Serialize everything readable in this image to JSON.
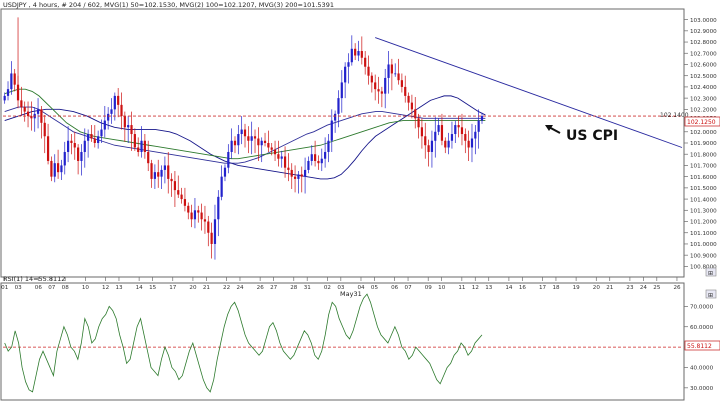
{
  "header": {
    "price_title": "USDJPY , 4 hours, # 204 / 602, MVG(1) 50=102.1530, MVG(2) 100=102.1207, MVG(3) 200=101.5391",
    "rsi_title": "RSI(1) 14=55.8112"
  },
  "annotations": {
    "event_label": "US CPI",
    "month_label": "May31",
    "last_price_tag": "102.1250",
    "ref_price_tag": "102.1400",
    "rsi_value_tag": "55.8112"
  },
  "colors": {
    "background": "#ffffff",
    "axis": "#6a6a6a",
    "grid": "#e4e4e4",
    "candle_up": "#2222cc",
    "candle_down": "#cc1111",
    "ma_50": "#16168a",
    "ma_100": "#2f2f99",
    "ma_200": "#2e7a2e",
    "rsi_line": "#2d7a2d",
    "rsi_level": "#cc2222",
    "price_level": "#cc3333",
    "trendline": "#2a2aa0",
    "event_text": "#111111"
  },
  "chart_data": [
    {
      "type": "candlestick",
      "title": "USDJPY , 4 hours",
      "y_axis_side": "right",
      "ylim": [
        100.75,
        103.05
      ],
      "y_ticks": [
        "103.0000",
        "102.9000",
        "102.8000",
        "102.7000",
        "102.6000",
        "102.5000",
        "102.4000",
        "102.3000",
        "102.2000",
        "102.1250",
        "102.0000",
        "101.9000",
        "101.8000",
        "101.7000",
        "101.6000",
        "101.5000",
        "101.4000",
        "101.3000",
        "101.2000",
        "101.1000",
        "101.0000",
        "100.9000",
        "100.8000"
      ],
      "x_ticks": [
        "01",
        "03",
        "06",
        "07",
        "08",
        "10",
        "12",
        "13",
        "14",
        "15",
        "17",
        "20",
        "21",
        "22",
        "24",
        "26",
        "27",
        "28",
        "31",
        "02",
        "03",
        "04",
        "05",
        "06",
        "07",
        "09",
        "10",
        "11",
        "12",
        "13",
        "14",
        "16",
        "17",
        "18",
        "19",
        "20",
        "21",
        "23",
        "24",
        "25",
        "26"
      ],
      "x_tick_positions": [
        0,
        4,
        10,
        14,
        18,
        24,
        30,
        34,
        40,
        44,
        50,
        56,
        60,
        66,
        70,
        76,
        80,
        86,
        90,
        96,
        100,
        106,
        110,
        116,
        120,
        126,
        130,
        136,
        140,
        144,
        150,
        154,
        160,
        164,
        170,
        176,
        180,
        186,
        190,
        194,
        200
      ],
      "x_total_bars": 202,
      "close": [
        102.32,
        102.38,
        102.52,
        102.42,
        102.28,
        102.22,
        102.18,
        102.14,
        102.12,
        102.16,
        102.2,
        102.08,
        101.96,
        101.74,
        101.6,
        101.72,
        101.64,
        101.7,
        101.82,
        101.92,
        101.9,
        101.86,
        101.74,
        101.82,
        101.92,
        101.98,
        101.94,
        101.9,
        101.96,
        102.02,
        102.1,
        102.16,
        102.2,
        102.32,
        102.24,
        102.14,
        102.04,
        102.06,
        101.98,
        101.86,
        101.82,
        101.92,
        101.82,
        101.72,
        101.58,
        101.64,
        101.6,
        101.66,
        101.7,
        101.58,
        101.56,
        101.48,
        101.44,
        101.4,
        101.34,
        101.28,
        101.22,
        101.3,
        101.28,
        101.22,
        101.2,
        101.1,
        101.0,
        101.22,
        101.42,
        101.6,
        101.68,
        101.82,
        101.92,
        101.88,
        101.98,
        102.02,
        101.96,
        101.92,
        101.96,
        101.94,
        101.88,
        101.92,
        101.9,
        101.86,
        101.84,
        101.8,
        101.76,
        101.78,
        101.68,
        101.66,
        101.6,
        101.58,
        101.62,
        101.6,
        101.66,
        101.74,
        101.8,
        101.74,
        101.72,
        101.76,
        101.82,
        101.92,
        102.1,
        102.16,
        102.3,
        102.44,
        102.58,
        102.62,
        102.74,
        102.68,
        102.72,
        102.66,
        102.58,
        102.5,
        102.44,
        102.38,
        102.36,
        102.34,
        102.48,
        102.6,
        102.52,
        102.52,
        102.46,
        102.4,
        102.32,
        102.26,
        102.2,
        102.12,
        102.04,
        101.96,
        101.88,
        101.82,
        101.92,
        102.0,
        102.06,
        101.92,
        101.86,
        101.92,
        101.98,
        102.06,
        102.04,
        101.98,
        101.92,
        101.86,
        101.94,
        102.0,
        102.1,
        102.14
      ],
      "series": [
        {
          "name": "MVG(1) 50",
          "values_from_bar": 0,
          "values": [
            102.1,
            102.12,
            102.14,
            102.16,
            102.18,
            102.19,
            102.2,
            102.2,
            102.2,
            102.19,
            102.18,
            102.16,
            102.14,
            102.11,
            102.08,
            102.06,
            102.04,
            102.03,
            102.02,
            102.02,
            102.02,
            102.02,
            102.02,
            102.01,
            102.0,
            101.98,
            101.95,
            101.92,
            101.88,
            101.84,
            101.8,
            101.77,
            101.74,
            101.72,
            101.7,
            101.69,
            101.68,
            101.67,
            101.66,
            101.65,
            101.64,
            101.63,
            101.62,
            101.61,
            101.6,
            101.59,
            101.58,
            101.58,
            101.59,
            101.62,
            101.68,
            101.75,
            101.83,
            101.9,
            101.96,
            102.0,
            102.04,
            102.08,
            102.12,
            102.16,
            102.2,
            102.24,
            102.28,
            102.3,
            102.32,
            102.32,
            102.3,
            102.26,
            102.22,
            102.18,
            102.15
          ]
        },
        {
          "name": "MVG(2) 100",
          "values_from_bar": 0,
          "values": [
            102.18,
            102.2,
            102.22,
            102.22,
            102.22,
            102.2,
            102.16,
            102.12,
            102.08,
            102.04,
            102.0,
            101.98,
            101.96,
            101.94,
            101.92,
            101.9,
            101.88,
            101.87,
            101.86,
            101.85,
            101.84,
            101.83,
            101.82,
            101.81,
            101.8,
            101.79,
            101.78,
            101.77,
            101.76,
            101.75,
            101.74,
            101.73,
            101.72,
            101.72,
            101.72,
            101.73,
            101.75,
            101.77,
            101.8,
            101.83,
            101.86,
            101.89,
            101.92,
            101.95,
            101.98,
            102.0,
            102.03,
            102.06,
            102.08,
            102.1,
            102.12,
            102.14,
            102.16,
            102.17,
            102.18,
            102.18,
            102.17,
            102.16,
            102.15,
            102.14,
            102.13,
            102.12,
            102.12,
            102.12,
            102.12,
            102.12,
            102.12,
            102.12,
            102.12,
            102.12,
            102.12
          ]
        },
        {
          "name": "MVG(3) 200",
          "values_from_bar": 0,
          "values": [
            102.34,
            102.36,
            102.38,
            102.38,
            102.36,
            102.32,
            102.26,
            102.2,
            102.14,
            102.08,
            102.04,
            102.0,
            101.98,
            101.96,
            101.95,
            101.94,
            101.93,
            101.92,
            101.91,
            101.9,
            101.89,
            101.88,
            101.87,
            101.86,
            101.85,
            101.84,
            101.83,
            101.82,
            101.81,
            101.8,
            101.79,
            101.78,
            101.77,
            101.76,
            101.76,
            101.77,
            101.78,
            101.79,
            101.8,
            101.81,
            101.82,
            101.83,
            101.84,
            101.85,
            101.86,
            101.87,
            101.88,
            101.9,
            101.92,
            101.94,
            101.96,
            101.98,
            102.0,
            102.02,
            102.04,
            102.06,
            102.08,
            102.09,
            102.1,
            102.1,
            102.1,
            102.1,
            102.1,
            102.1,
            102.1,
            102.1,
            102.1,
            102.1,
            102.1,
            102.1,
            102.1
          ]
        },
        {
          "name": "Trendline",
          "points": [
            [
              111,
              102.84
            ],
            [
              202,
              101.86
            ]
          ]
        },
        {
          "name": "Price level 102.14",
          "value": 102.14
        }
      ],
      "grid": false
    },
    {
      "type": "line",
      "title": "RSI(1) 14=55.8112",
      "y_axis_side": "right",
      "ylim": [
        25,
        80
      ],
      "y_ticks": [
        "70.0000",
        "60.0000",
        "50.0000",
        "40.0000",
        "30.0000"
      ],
      "reference_line": 50,
      "values": [
        52,
        48,
        50,
        58,
        52,
        40,
        33,
        29,
        28,
        36,
        44,
        48,
        44,
        40,
        36,
        48,
        54,
        60,
        56,
        50,
        48,
        44,
        52,
        64,
        60,
        52,
        54,
        60,
        64,
        66,
        70,
        68,
        64,
        56,
        50,
        42,
        44,
        52,
        60,
        64,
        56,
        48,
        40,
        38,
        36,
        44,
        50,
        46,
        40,
        38,
        34,
        36,
        42,
        48,
        52,
        46,
        40,
        34,
        30,
        28,
        34,
        44,
        52,
        60,
        66,
        70,
        72,
        68,
        62,
        56,
        52,
        50,
        48,
        46,
        48,
        54,
        60,
        62,
        58,
        52,
        48,
        46,
        44,
        46,
        50,
        54,
        58,
        56,
        52,
        46,
        44,
        48,
        56,
        66,
        72,
        70,
        64,
        60,
        56,
        54,
        58,
        64,
        70,
        74,
        76,
        72,
        66,
        60,
        56,
        54,
        52,
        56,
        60,
        56,
        50,
        48,
        44,
        46,
        50,
        48,
        46,
        44,
        42,
        38,
        34,
        32,
        36,
        40,
        42,
        46,
        48,
        52,
        50,
        46,
        48,
        52,
        54,
        56
      ]
    }
  ]
}
